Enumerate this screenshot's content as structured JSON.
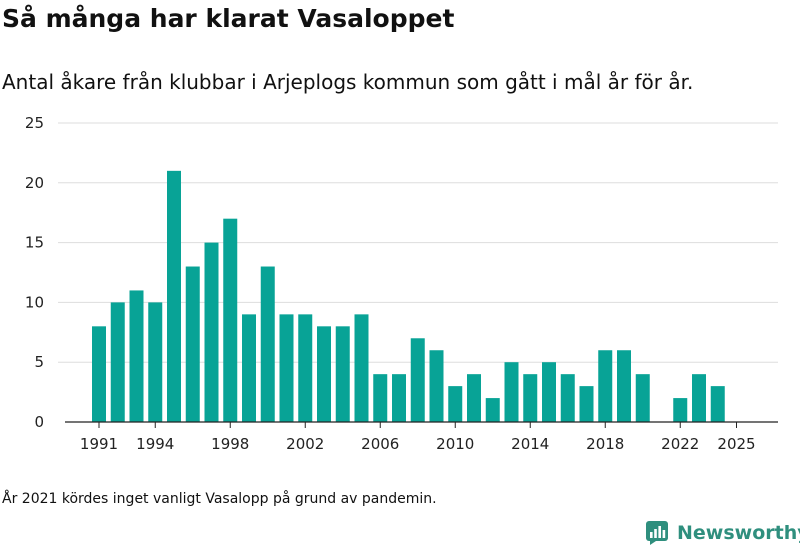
{
  "header": {
    "title": "Så många har klarat Vasaloppet",
    "subtitle": "Antal åkare från klubbar i Arjeplogs kommun som gått i mål år för år."
  },
  "footer": {
    "note": "År 2021 kördes inget vanligt Vasalopp på grund av pandemin.",
    "brand": "Newsworthy"
  },
  "colors": {
    "bar": "#08a396",
    "grid": "#dddddd",
    "axis": "#222222",
    "brand": "#2f8f7e"
  },
  "chart_data": {
    "type": "bar",
    "title": "Så många har klarat Vasaloppet",
    "subtitle": "Antal åkare från klubbar i Arjeplogs kommun som gått i mål år för år.",
    "xlabel": "",
    "ylabel": "",
    "ylim": [
      0,
      25
    ],
    "yticks": [
      0,
      5,
      10,
      15,
      20,
      25
    ],
    "xlim": [
      1990,
      2026
    ],
    "xticks": [
      1991,
      1994,
      1998,
      2002,
      2006,
      2010,
      2014,
      2018,
      2022,
      2025
    ],
    "grid": true,
    "x": [
      1991,
      1992,
      1993,
      1994,
      1995,
      1996,
      1997,
      1998,
      1999,
      2000,
      2001,
      2002,
      2003,
      2004,
      2005,
      2006,
      2007,
      2008,
      2009,
      2010,
      2011,
      2012,
      2013,
      2014,
      2015,
      2016,
      2017,
      2018,
      2019,
      2020,
      2022,
      2023,
      2024
    ],
    "values": [
      8,
      10,
      11,
      10,
      21,
      13,
      15,
      17,
      9,
      13,
      9,
      9,
      8,
      8,
      9,
      4,
      4,
      7,
      6,
      3,
      4,
      2,
      5,
      4,
      5,
      4,
      3,
      6,
      6,
      4,
      2,
      4,
      3
    ]
  }
}
